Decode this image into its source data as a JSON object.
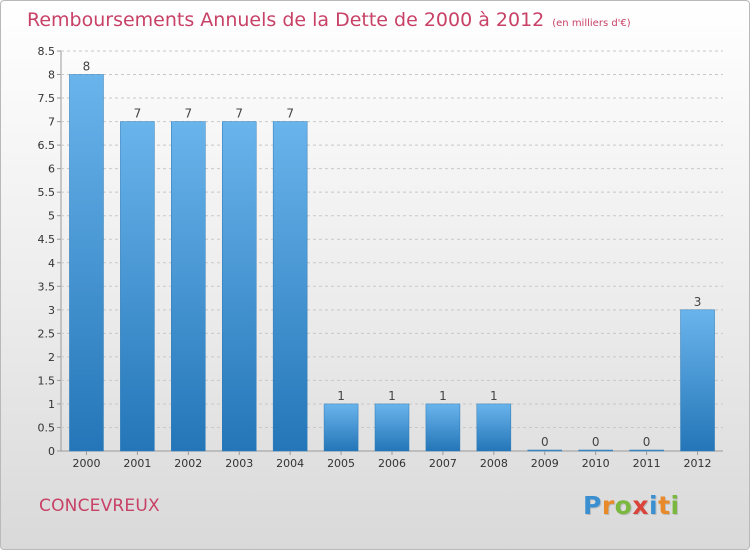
{
  "header": {
    "title": "Remboursements Annuels de la Dette de 2000 à 2012",
    "unit_note": "(en milliers d'€)"
  },
  "footer": {
    "commune": "CONCEVREUX",
    "logo_text": "Proxiti"
  },
  "colors": {
    "bar_top": "#6ab4ec",
    "bar_bottom": "#2476b8",
    "title": "#c84166"
  },
  "chart_data": {
    "type": "bar",
    "title": "Remboursements Annuels de la Dette de 2000 à 2012",
    "subtitle": "(en milliers d'€)",
    "categories": [
      "2000",
      "2001",
      "2002",
      "2003",
      "2004",
      "2005",
      "2006",
      "2007",
      "2008",
      "2009",
      "2010",
      "2011",
      "2012"
    ],
    "values": [
      8,
      7,
      7,
      7,
      7,
      1,
      1,
      1,
      1,
      0,
      0,
      0,
      3
    ],
    "data_labels": [
      "8",
      "7",
      "7",
      "7",
      "7",
      "1",
      "1",
      "1",
      "1",
      "0",
      "0",
      "0",
      "3"
    ],
    "ylim": [
      0,
      8.5
    ],
    "yticks": [
      "0",
      "0.5",
      "1",
      "1.5",
      "2",
      "2.5",
      "3",
      "3.5",
      "4",
      "4.5",
      "5",
      "5.5",
      "6",
      "6.5",
      "7",
      "7.5",
      "8",
      "8.5"
    ],
    "grid": true
  }
}
